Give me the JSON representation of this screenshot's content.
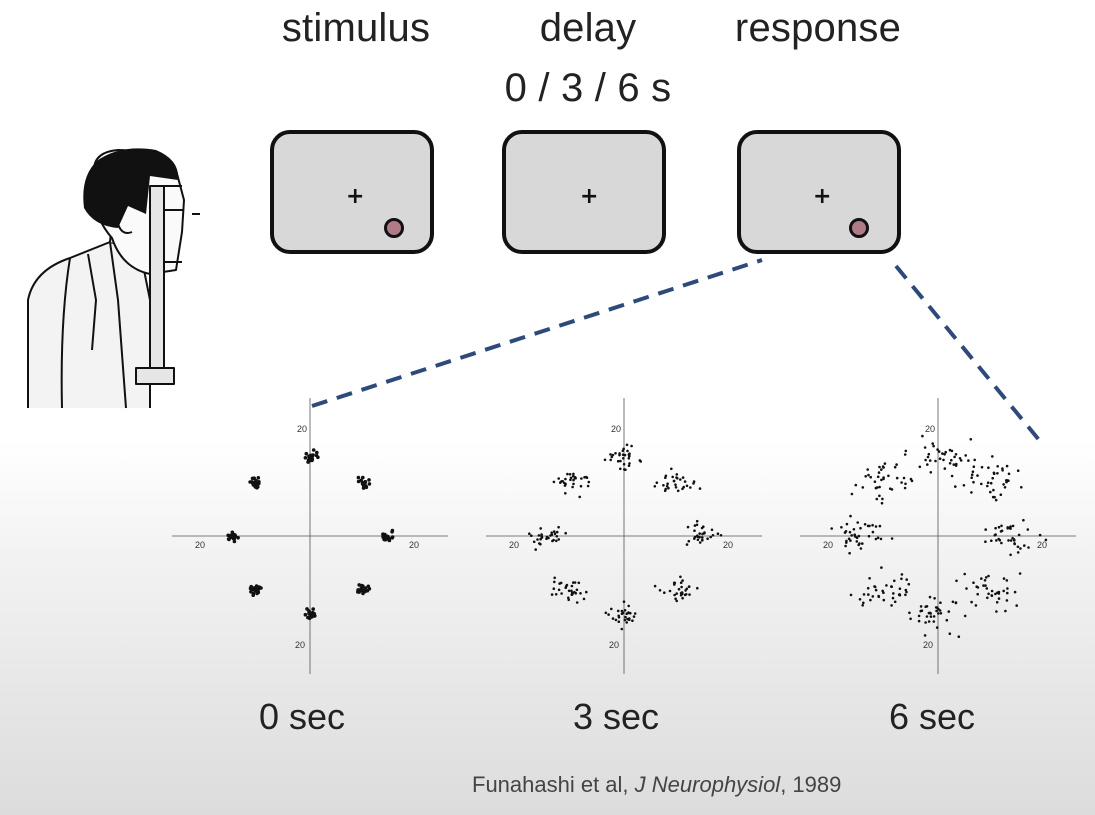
{
  "phases": [
    {
      "label": "stimulus",
      "sublabel": ""
    },
    {
      "label": "delay",
      "sublabel": "0 / 3 / 6 s"
    },
    {
      "label": "response",
      "sublabel": ""
    }
  ],
  "screens": [
    {
      "fixation": "+",
      "target_visible": true,
      "target_color": "#b07a86"
    },
    {
      "fixation": "+",
      "target_visible": false
    },
    {
      "fixation": "+",
      "target_visible": true,
      "target_color": "#b07a86"
    }
  ],
  "plots": [
    {
      "time_label": "0 sec",
      "tick_labels": {
        "top": "20",
        "left": "20",
        "right": "20",
        "bottom": "20"
      },
      "spread": 0.05
    },
    {
      "time_label": "3 sec",
      "tick_labels": {
        "top": "20",
        "left": "20",
        "right": "20",
        "bottom": "20"
      },
      "spread": 0.2
    },
    {
      "time_label": "6 sec",
      "tick_labels": {
        "top": "20",
        "left": "20",
        "right": "20",
        "bottom": "20"
      },
      "spread": 0.34
    }
  ],
  "citation": {
    "authors": "Funahashi et al, ",
    "journal": "J Neurophysiol",
    "year": ", 1989"
  },
  "colors": {
    "dashed_line": "#2e4a7a",
    "screen_fill": "#d8d8d8",
    "target_fill": "#b07a86"
  }
}
